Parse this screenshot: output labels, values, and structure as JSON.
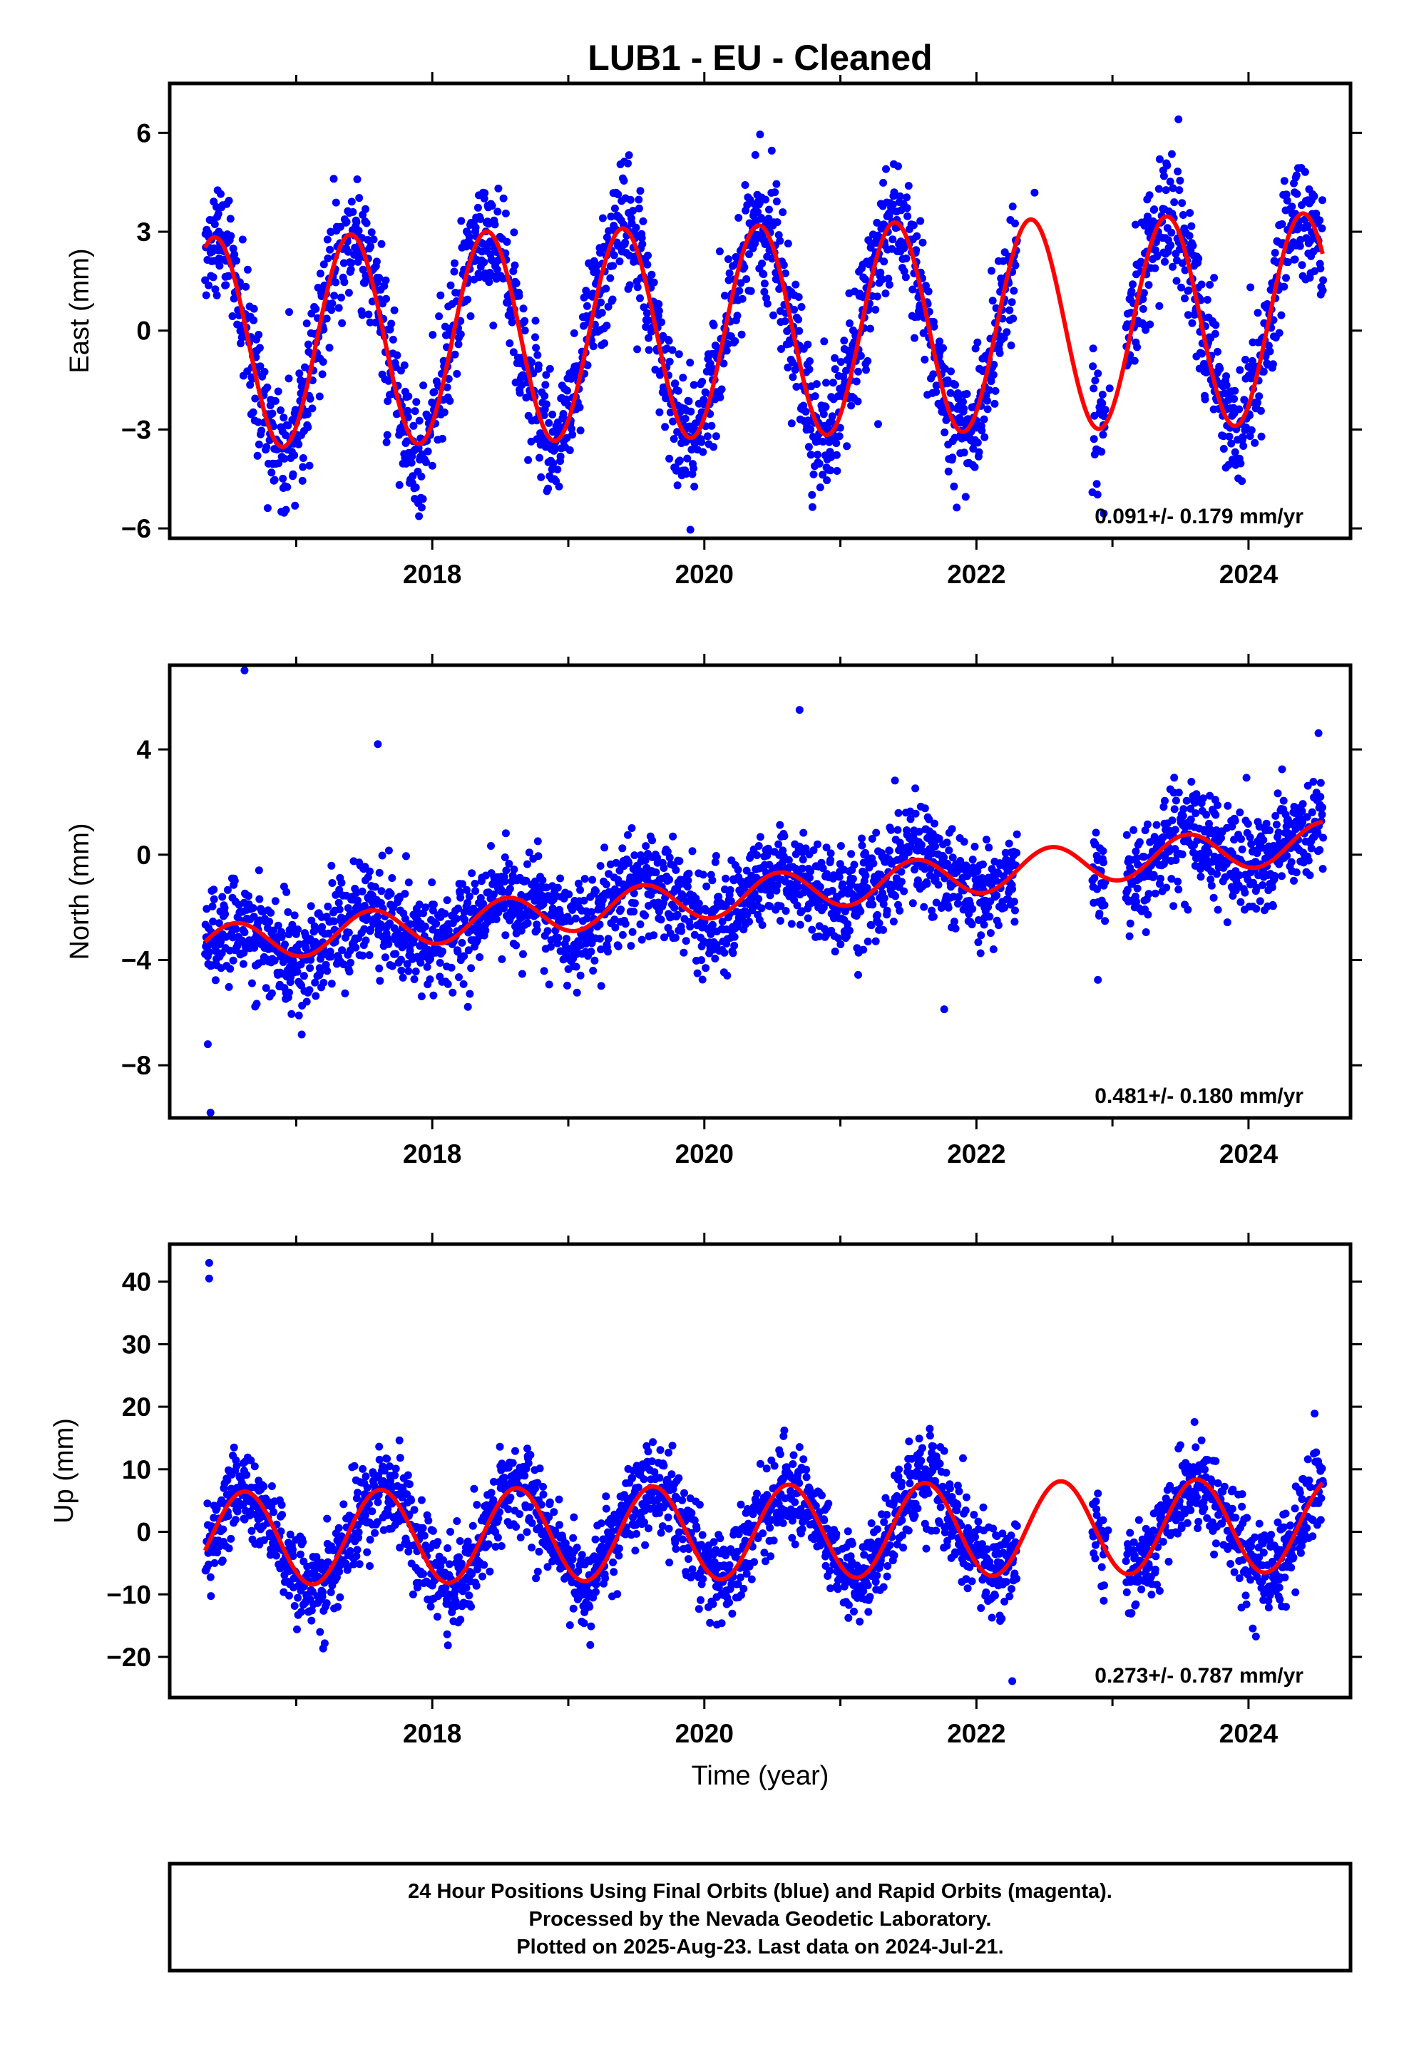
{
  "figure": {
    "title": "LUB1  - EU - Cleaned",
    "x_axis_label": "Time (year)",
    "footer": [
      "24 Hour Positions Using Final Orbits (blue) and Rapid Orbits (magenta).",
      "Processed by the Nevada Geodetic Laboratory.",
      "Plotted on 2025-Aug-23. Last data on 2024-Jul-21."
    ],
    "colors": {
      "points": "#0000ff",
      "model": "#ff0000",
      "frame": "#000000"
    }
  },
  "chart_data": [
    {
      "type": "scatter",
      "ylabel": "East (mm)",
      "rate_text": "0.091+/- 0.179 mm/yr",
      "xlim": [
        2016.07,
        2024.75
      ],
      "ylim": [
        -6.3,
        7.5
      ],
      "x_ticks": [
        2018,
        2020,
        2022,
        2024
      ],
      "y_ticks": [
        6,
        3,
        0,
        -3,
        -6
      ],
      "grid": false,
      "series": [
        {
          "kind": "points",
          "x_range": [
            2016.33,
            2024.55
          ],
          "gaps": [
            [
              2022.3,
              2022.85
            ],
            [
              2022.95,
              2023.1
            ]
          ],
          "trend": 0.091,
          "offset": 0.0,
          "annual_amp": 3.2,
          "phase_peak": 0.4,
          "noise": 0.95
        },
        {
          "kind": "model",
          "x_range": [
            2016.33,
            2024.55
          ],
          "trend": 0.091,
          "offset": 0.0,
          "annual_amp": 3.2,
          "phase_peak": 0.4
        }
      ]
    },
    {
      "type": "scatter",
      "ylabel": "North (mm)",
      "rate_text": "0.481+/- 0.180 mm/yr",
      "xlim": [
        2016.07,
        2024.75
      ],
      "ylim": [
        -10.0,
        7.2
      ],
      "x_ticks": [
        2018,
        2020,
        2022,
        2024
      ],
      "y_ticks": [
        4,
        0,
        -4,
        -8
      ],
      "grid": false,
      "series": [
        {
          "kind": "points",
          "x_range": [
            2016.33,
            2024.55
          ],
          "gaps": [
            [
              2022.3,
              2022.85
            ],
            [
              2022.95,
              2023.1
            ]
          ],
          "trend": 0.481,
          "offset": -1.45,
          "annual_amp": 0.75,
          "phase_peak": 0.55,
          "noise": 0.95
        },
        {
          "kind": "model",
          "x_range": [
            2016.33,
            2024.55
          ],
          "trend": 0.481,
          "offset": -1.45,
          "annual_amp": 0.75,
          "phase_peak": 0.55
        }
      ]
    },
    {
      "type": "scatter",
      "ylabel": "Up (mm)",
      "rate_text": "0.273+/- 0.787 mm/yr",
      "xlim": [
        2016.07,
        2024.75
      ],
      "ylim": [
        -26.5,
        46
      ],
      "x_ticks": [
        2018,
        2020,
        2022,
        2024
      ],
      "y_ticks": [
        40,
        30,
        20,
        10,
        0,
        -10,
        -20
      ],
      "grid": false,
      "series": [
        {
          "kind": "points",
          "x_range": [
            2016.33,
            2024.55
          ],
          "gaps": [
            [
              2022.3,
              2022.85
            ],
            [
              2022.95,
              2023.1
            ]
          ],
          "trend": 0.273,
          "offset": 0.0,
          "annual_amp": 7.5,
          "phase_peak": 0.62,
          "noise": 3.6
        },
        {
          "kind": "model",
          "x_range": [
            2016.33,
            2024.55
          ],
          "trend": 0.273,
          "offset": 0.0,
          "annual_amp": 7.5,
          "phase_peak": 0.62
        }
      ]
    }
  ]
}
